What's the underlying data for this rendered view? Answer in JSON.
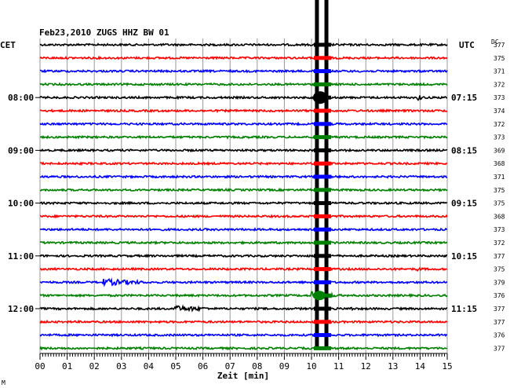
{
  "chart_data": {
    "type": "line",
    "title": "Feb23,2010   ZUGS HHZ BW 01",
    "left_axis_label": "CET",
    "right_axis_label": "UTC",
    "dc_label": "DC",
    "xlabel": "Zeit [min]",
    "xlim": [
      0,
      15
    ],
    "x_ticks": [
      "00",
      "01",
      "02",
      "03",
      "04",
      "05",
      "06",
      "07",
      "08",
      "09",
      "10",
      "11",
      "12",
      "13",
      "14",
      "15"
    ],
    "left_times": [
      "08:00",
      "09:00",
      "10:00",
      "11:00",
      "12:00"
    ],
    "right_times": [
      "07:15",
      "08:15",
      "09:15",
      "10:15",
      "11:15"
    ],
    "dc_values": [
      "377",
      "375",
      "371",
      "372",
      "373",
      "374",
      "372",
      "373",
      "369",
      "368",
      "371",
      "375",
      "375",
      "368",
      "373",
      "372",
      "377",
      "375",
      "379",
      "376",
      "377",
      "377",
      "376",
      "377"
    ],
    "trace_colors": [
      "#000000",
      "#ff0000",
      "#0000ff",
      "#008000"
    ],
    "grid": true,
    "events": [
      {
        "minute": 10.2,
        "description": "saturated vertical traces"
      },
      {
        "minute": 10.55,
        "description": "saturated vertical traces"
      }
    ],
    "footer_mark": "M"
  }
}
